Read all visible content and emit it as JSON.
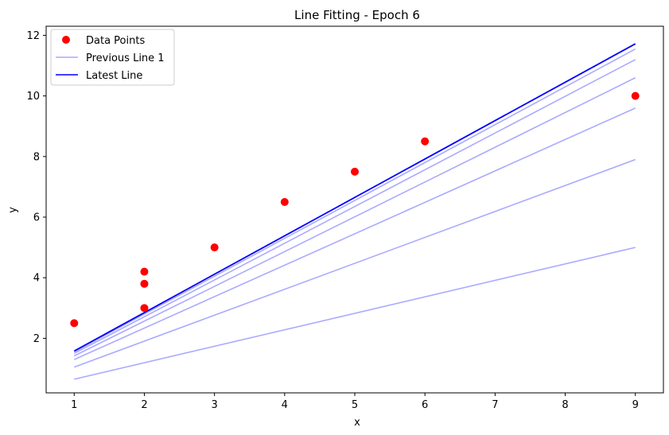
{
  "chart_data": {
    "type": "scatter",
    "title": "Line Fitting - Epoch 6",
    "xlabel": "x",
    "ylabel": "y",
    "xlim": [
      0.6,
      9.4
    ],
    "ylim": [
      0.2,
      12.3
    ],
    "x_ticks": [
      1,
      2,
      3,
      4,
      5,
      6,
      7,
      8,
      9
    ],
    "y_ticks": [
      2,
      4,
      6,
      8,
      10,
      12
    ],
    "grid": false,
    "legend_position": "top-left",
    "points": {
      "name": "Data Points",
      "color": "#ff0000",
      "x": [
        1,
        2,
        2,
        2,
        3,
        4,
        5,
        6,
        9
      ],
      "y": [
        2.5,
        3.0,
        3.8,
        4.2,
        5.0,
        6.5,
        7.5,
        8.5,
        10.0
      ]
    },
    "previous_lines": {
      "name": "Previous Line 1",
      "color": "#aaaaff",
      "x_range": [
        1,
        9
      ],
      "lines": [
        {
          "y_start": 0.65,
          "y_end": 5.0
        },
        {
          "y_start": 1.05,
          "y_end": 7.9
        },
        {
          "y_start": 1.3,
          "y_end": 9.6
        },
        {
          "y_start": 1.42,
          "y_end": 10.6
        },
        {
          "y_start": 1.5,
          "y_end": 11.2
        },
        {
          "y_start": 1.55,
          "y_end": 11.55
        }
      ]
    },
    "latest_line": {
      "name": "Latest Line",
      "color": "#0000ff",
      "x_range": [
        1,
        9
      ],
      "y_start": 1.58,
      "y_end": 11.72
    }
  }
}
